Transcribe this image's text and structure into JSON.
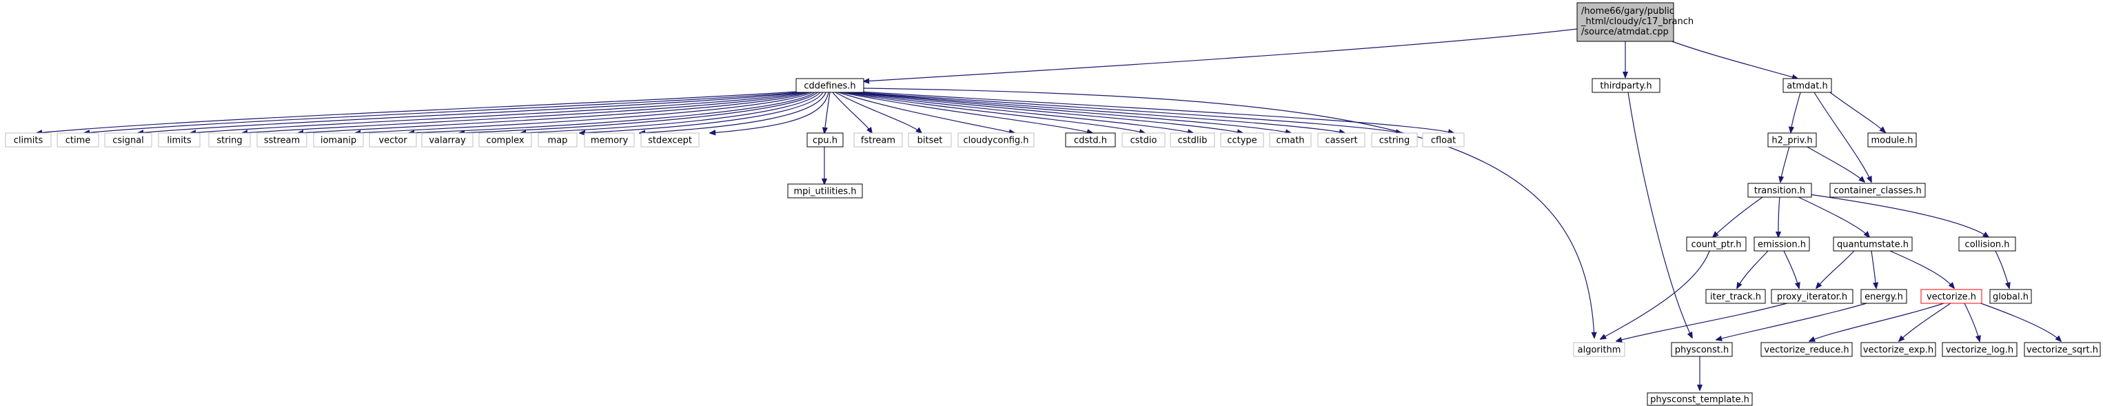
{
  "diagram": {
    "root": {
      "lines": [
        "/home66/gary/public",
        "_html/cloudy/c17_branch",
        "/source/atmdat.cpp"
      ]
    },
    "nodes": {
      "cddefines": "cddefines.h",
      "thirdparty": "thirdparty.h",
      "atmdat": "atmdat.h",
      "climits": "climits",
      "ctime": "ctime",
      "csignal": "csignal",
      "limits": "limits",
      "string": "string",
      "sstream": "sstream",
      "iomanip": "iomanip",
      "vector": "vector",
      "valarray": "valarray",
      "complex": "complex",
      "map": "map",
      "memory": "memory",
      "stdexcept": "stdexcept",
      "cpu": "cpu.h",
      "fstream": "fstream",
      "bitset": "bitset",
      "cloudyconfig": "cloudyconfig.h",
      "cdstd": "cdstd.h",
      "cstdio": "cstdio",
      "cstdlib": "cstdlib",
      "cctype": "cctype",
      "cmath": "cmath",
      "cassert": "cassert",
      "cstring": "cstring",
      "cfloat": "cfloat",
      "mpi_utilities": "mpi_utilities.h",
      "h2_priv": "h2_priv.h",
      "module": "module.h",
      "container_classes": "container_classes.h",
      "transition": "transition.h",
      "count_ptr": "count_ptr.h",
      "emission": "emission.h",
      "quantumstate": "quantumstate.h",
      "collision": "collision.h",
      "iter_track": "iter_track.h",
      "proxy_iterator": "proxy_iterator.h",
      "energy": "energy.h",
      "vectorize": "vectorize.h",
      "global": "global.h",
      "algorithm": "algorithm",
      "physconst": "physconst.h",
      "vectorize_reduce": "vectorize_reduce.h",
      "vectorize_exp": "vectorize_exp.h",
      "vectorize_log": "vectorize_log.h",
      "vectorize_sqrt": "vectorize_sqrt.h",
      "physconst_template": "physconst_template.h"
    },
    "colors": {
      "edge": "#191970",
      "box_border": "#000000",
      "missing_border": "#bfbfbf",
      "highlight_border": "#ff0000",
      "root_fill": "#bfbfbf"
    }
  }
}
